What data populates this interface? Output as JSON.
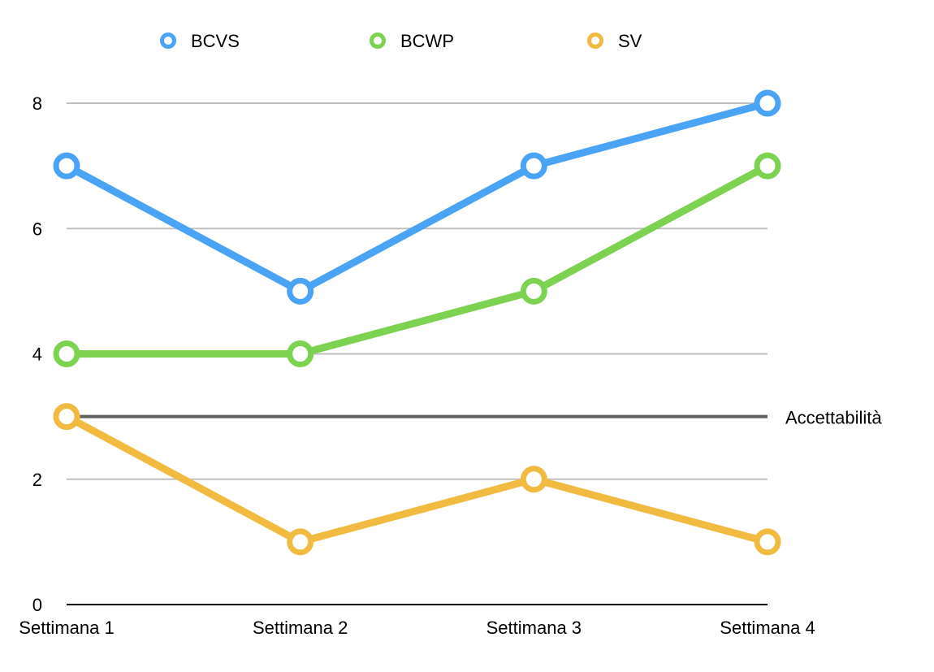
{
  "chart_data": {
    "type": "line",
    "categories": [
      "Settimana 1",
      "Settimana 2",
      "Settimana 3",
      "Settimana 4"
    ],
    "series": [
      {
        "name": "BCVS",
        "values": [
          7,
          5,
          7,
          8
        ],
        "color": "#4ba3f5"
      },
      {
        "name": "BCWP",
        "values": [
          4,
          4,
          5,
          7
        ],
        "color": "#7ed252"
      },
      {
        "name": "SV",
        "values": [
          3,
          1,
          2,
          1
        ],
        "color": "#f0bb40"
      }
    ],
    "reference_line": {
      "label": "Accettabilità",
      "value": 3,
      "color": "#5f5f5f"
    },
    "ylim": [
      0,
      8
    ],
    "y_ticks": [
      0,
      2,
      4,
      6,
      8
    ],
    "grid": true,
    "legend_position": "top",
    "marker": "hollow-circle"
  }
}
